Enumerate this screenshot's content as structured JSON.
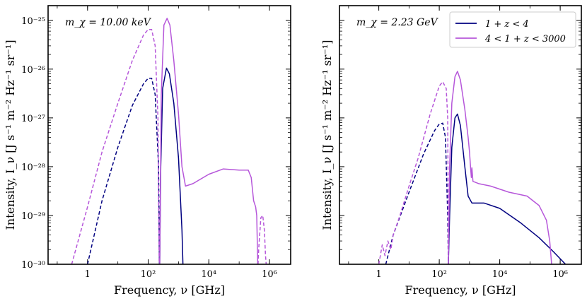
{
  "chart_data": [
    {
      "type": "line",
      "id": "left",
      "annotation": "m_χ = 10.00 keV",
      "xlabel": "Frequency, ν [GHz]",
      "ylabel": "Intensity, I_ν [J s⁻¹ m⁻² Hz⁻¹ sr⁻¹]",
      "xscale": "log",
      "yscale": "log",
      "xlim": [
        0.05,
        5000000
      ],
      "ylim": [
        1e-30,
        2e-25
      ],
      "xticks": [
        {
          "value": 1,
          "label": "1"
        },
        {
          "value": 100,
          "label": "10²"
        },
        {
          "value": 10000,
          "label": "10⁴"
        },
        {
          "value": 1000000,
          "label": "10⁶"
        }
      ],
      "yticks": [
        {
          "value": 1e-30,
          "label": "10⁻³⁰"
        },
        {
          "value": 1e-29,
          "label": "10⁻²⁹"
        },
        {
          "value": 1e-28,
          "label": "10⁻²⁸"
        },
        {
          "value": 1e-27,
          "label": "10⁻²⁷"
        },
        {
          "value": 1e-26,
          "label": "10⁻²⁶"
        },
        {
          "value": 1e-25,
          "label": "10⁻²⁵"
        }
      ],
      "show_ytick_labels": true,
      "series": [
        {
          "name": "1 + z < 4 (dashed)",
          "color": "#000080",
          "dash": true,
          "points": [
            [
              1,
              1e-30
            ],
            [
              3,
              2e-29
            ],
            [
              10,
              2.5e-28
            ],
            [
              30,
              1.8e-27
            ],
            [
              70,
              5e-27
            ],
            [
              100,
              6.5e-27
            ],
            [
              130,
              6.5e-27
            ],
            [
              170,
              3e-27
            ],
            [
              220,
              1e-28
            ],
            [
              235,
              1e-30
            ]
          ]
        },
        {
          "name": "1 + z < 4",
          "color": "#000080",
          "dash": false,
          "points": [
            [
              240,
              1e-30
            ],
            [
              260,
              1e-28
            ],
            [
              300,
              4e-27
            ],
            [
              400,
              1.05e-26
            ],
            [
              500,
              8e-27
            ],
            [
              700,
              2e-27
            ],
            [
              1000,
              1.5e-28
            ],
            [
              1300,
              5e-30
            ],
            [
              1400,
              1e-30
            ]
          ]
        },
        {
          "name": "4 < 1 + z < 3000 (dashed)",
          "color": "#b657da",
          "dash": true,
          "points": [
            [
              0.3,
              1e-30
            ],
            [
              1,
              1.5e-29
            ],
            [
              3,
              2e-28
            ],
            [
              10,
              2e-27
            ],
            [
              30,
              1.5e-26
            ],
            [
              70,
              5e-26
            ],
            [
              100,
              6.5e-26
            ],
            [
              130,
              6.5e-26
            ],
            [
              170,
              3e-26
            ],
            [
              210,
              1e-27
            ],
            [
              230,
              1e-30
            ]
          ]
        },
        {
          "name": "4 < 1 + z < 3000",
          "color": "#b657da",
          "dash": false,
          "points": [
            [
              240,
              1e-30
            ],
            [
              270,
              3e-27
            ],
            [
              330,
              8e-26
            ],
            [
              420,
              1.1e-25
            ],
            [
              520,
              8e-26
            ],
            [
              700,
              1.5e-26
            ],
            [
              1000,
              1.2e-27
            ],
            [
              1300,
              1e-28
            ],
            [
              1700,
              4e-29
            ],
            [
              3000,
              4.5e-29
            ],
            [
              10000,
              7e-29
            ],
            [
              30000,
              9e-29
            ],
            [
              100000,
              8.5e-29
            ],
            [
              200000,
              8.5e-29
            ],
            [
              250000,
              6e-29
            ],
            [
              300000,
              2e-29
            ],
            [
              350000,
              1.5e-29
            ],
            [
              380000,
              1e-29
            ],
            [
              410000,
              1e-30
            ]
          ]
        },
        {
          "name": "4 < 1 + z < 3000 (dashed tail)",
          "color": "#b657da",
          "dash": true,
          "points": [
            [
              420000,
              1e-30
            ],
            [
              440000,
              2e-30
            ],
            [
              520000,
              9e-30
            ],
            [
              600000,
              1e-29
            ],
            [
              680000,
              5e-30
            ],
            [
              740000,
              1.5e-30
            ],
            [
              780000,
              1e-30
            ]
          ]
        }
      ]
    },
    {
      "type": "line",
      "id": "right",
      "annotation": "m_χ = 2.23 GeV",
      "xlabel": "Frequency, ν [GHz]",
      "ylabel": "Intensity, I_ν [J s⁻¹ m⁻² Hz⁻¹ sr⁻¹]",
      "xscale": "log",
      "yscale": "log",
      "xlim": [
        0.05,
        5000000
      ],
      "ylim": [
        1e-30,
        2e-25
      ],
      "xticks": [
        {
          "value": 1,
          "label": "1"
        },
        {
          "value": 100,
          "label": "10²"
        },
        {
          "value": 10000,
          "label": "10⁴"
        },
        {
          "value": 1000000,
          "label": "10⁶"
        }
      ],
      "yticks": [
        {
          "value": 1e-30,
          "label": ""
        },
        {
          "value": 1e-29,
          "label": ""
        },
        {
          "value": 1e-28,
          "label": ""
        },
        {
          "value": 1e-27,
          "label": ""
        },
        {
          "value": 1e-26,
          "label": ""
        },
        {
          "value": 1e-25,
          "label": ""
        }
      ],
      "show_ytick_labels": false,
      "legend": {
        "position": "top-right",
        "entries": [
          {
            "label": "1 + z < 4",
            "color": "#000080"
          },
          {
            "label": "4 < 1 + z < 3000",
            "color": "#b657da"
          }
        ]
      },
      "series": [
        {
          "name": "1 + z < 4 (dashed)",
          "color": "#000080",
          "dash": true,
          "points": [
            [
              1.7,
              1e-30
            ],
            [
              3,
              4e-30
            ],
            [
              10,
              3e-29
            ],
            [
              30,
              1.8e-28
            ],
            [
              70,
              5.5e-28
            ],
            [
              100,
              7.5e-28
            ],
            [
              130,
              7.8e-28
            ],
            [
              160,
              4e-28
            ],
            [
              190,
              1e-29
            ],
            [
              200,
              1e-30
            ]
          ]
        },
        {
          "name": "1 + z < 4",
          "color": "#000080",
          "dash": false,
          "points": [
            [
              200,
              1e-30
            ],
            [
              220,
              1e-29
            ],
            [
              260,
              2.5e-28
            ],
            [
              330,
              1e-27
            ],
            [
              400,
              1.2e-27
            ],
            [
              500,
              7e-28
            ],
            [
              700,
              1e-28
            ],
            [
              900,
              2.5e-29
            ],
            [
              1200,
              1.8e-29
            ],
            [
              3000,
              1.8e-29
            ],
            [
              10000,
              1.4e-29
            ],
            [
              50000,
              7e-30
            ],
            [
              200000,
              3.5e-30
            ],
            [
              600000,
              1.8e-30
            ],
            [
              1500000,
              1e-30
            ]
          ]
        },
        {
          "name": "4 < 1 + z < 3000 (dashed)",
          "color": "#b657da",
          "dash": true,
          "points": [
            [
              1,
              1e-30
            ],
            [
              1.3,
              2.5e-30
            ],
            [
              1.6,
              1.5e-30
            ],
            [
              2,
              3e-30
            ],
            [
              2.5,
              2e-30
            ],
            [
              3,
              4e-30
            ],
            [
              5,
              1e-29
            ],
            [
              10,
              4e-29
            ],
            [
              20,
              1.5e-28
            ],
            [
              50,
              1.2e-27
            ],
            [
              100,
              4.5e-27
            ],
            [
              130,
              5.5e-27
            ],
            [
              170,
              4e-27
            ],
            [
              190,
              1e-27
            ],
            [
              200,
              1e-30
            ]
          ]
        },
        {
          "name": "4 < 1 + z < 3000",
          "color": "#b657da",
          "dash": false,
          "points": [
            [
              200,
              1e-30
            ],
            [
              220,
              1e-28
            ],
            [
              260,
              2e-27
            ],
            [
              330,
              7e-27
            ],
            [
              400,
              9e-27
            ],
            [
              500,
              6e-27
            ],
            [
              700,
              1.5e-27
            ],
            [
              900,
              4e-28
            ],
            [
              1000,
              2e-28
            ],
            [
              1100,
              8.5e-29
            ],
            [
              1150,
              6e-29
            ],
            [
              1200,
              9.5e-29
            ],
            [
              1300,
              5e-29
            ],
            [
              2000,
              4.5e-29
            ],
            [
              5000,
              4e-29
            ],
            [
              20000,
              3e-29
            ],
            [
              80000,
              2.5e-29
            ],
            [
              200000,
              1.6e-29
            ],
            [
              350000,
              8e-30
            ],
            [
              450000,
              3e-30
            ],
            [
              520000,
              1e-30
            ]
          ]
        }
      ]
    }
  ]
}
